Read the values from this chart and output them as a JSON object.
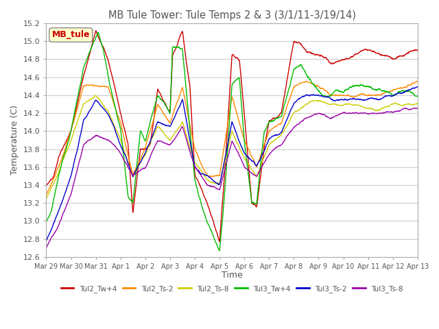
{
  "title": "MB Tule Tower: Tule Temps 2 & 3 (3/1/11-3/19/14)",
  "ylabel": "Temperature (C)",
  "xlabel": "Time",
  "ylim": [
    12.6,
    15.2
  ],
  "yticks": [
    12.6,
    12.8,
    13.0,
    13.2,
    13.4,
    13.6,
    13.8,
    14.0,
    14.2,
    14.4,
    14.6,
    14.8,
    15.0,
    15.2
  ],
  "xtick_labels": [
    "Mar 29",
    "Mar 30",
    "Mar 31",
    "Apr 1",
    "Apr 2",
    "Apr 3",
    "Apr 4",
    "Apr 5",
    "Apr 6",
    "Apr 7",
    "Apr 8",
    "Apr 9",
    "Apr 10",
    "Apr 11",
    "Apr 12",
    "Apr 13"
  ],
  "line_colors": [
    "#cc0000",
    "#ff8800",
    "#cccc00",
    "#00bb00",
    "#0000cc",
    "#9900aa"
  ],
  "line_labels": [
    "Tul2_Tw+4",
    "Tul2_Ts-2",
    "Tul2_Ts-8",
    "Tul3_Tw+4",
    "Tul3_Ts-2",
    "Tul3_Ts-8"
  ],
  "legend_title": "MB_tule",
  "background_color": "#ffffff",
  "grid_color": "#cccccc",
  "title_color": "#555555",
  "axis_label_color": "#555555",
  "n_days": 15,
  "pts_per_day": 96
}
